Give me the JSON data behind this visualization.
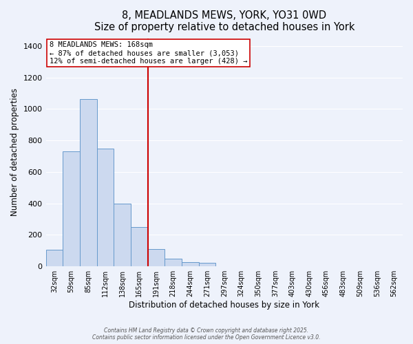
{
  "title": "8, MEADLANDS MEWS, YORK, YO31 0WD",
  "subtitle": "Size of property relative to detached houses in York",
  "xlabel": "Distribution of detached houses by size in York",
  "ylabel": "Number of detached properties",
  "bar_labels": [
    "32sqm",
    "59sqm",
    "85sqm",
    "112sqm",
    "138sqm",
    "165sqm",
    "191sqm",
    "218sqm",
    "244sqm",
    "271sqm",
    "297sqm",
    "324sqm",
    "350sqm",
    "377sqm",
    "403sqm",
    "430sqm",
    "456sqm",
    "483sqm",
    "509sqm",
    "536sqm",
    "562sqm"
  ],
  "bar_values": [
    107,
    730,
    1065,
    750,
    400,
    250,
    110,
    50,
    27,
    22,
    0,
    0,
    0,
    0,
    0,
    0,
    0,
    0,
    0,
    0,
    0
  ],
  "bar_color": "#ccd9ef",
  "bar_edge_color": "#6699cc",
  "ylim": [
    0,
    1450
  ],
  "yticks": [
    0,
    200,
    400,
    600,
    800,
    1000,
    1200,
    1400
  ],
  "property_line_x": 5.5,
  "property_line_color": "#cc0000",
  "annotation_title": "8 MEADLANDS MEWS: 168sqm",
  "annotation_line1": "← 87% of detached houses are smaller (3,053)",
  "annotation_line2": "12% of semi-detached houses are larger (428) →",
  "footer1": "Contains HM Land Registry data © Crown copyright and database right 2025.",
  "footer2": "Contains public sector information licensed under the Open Government Licence v3.0.",
  "bg_color": "#eef2fb",
  "plot_bg_color": "#eef2fb",
  "grid_color": "#ffffff"
}
